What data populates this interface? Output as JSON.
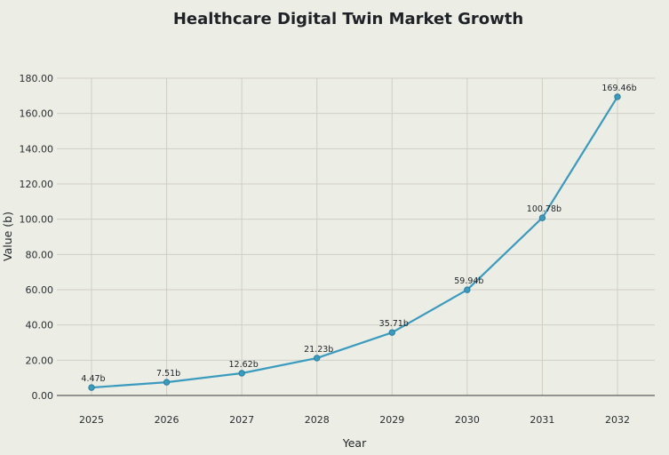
{
  "chart_data": {
    "type": "line",
    "title": "Healthcare Digital Twin Market Growth",
    "xlabel": "Year",
    "ylabel": "Value (b)",
    "categories": [
      "2025",
      "2026",
      "2027",
      "2028",
      "2029",
      "2030",
      "2031",
      "2032"
    ],
    "series": [
      {
        "name": "Value (b)",
        "values": [
          4.47,
          7.51,
          12.62,
          21.23,
          35.71,
          59.94,
          100.78,
          169.46
        ],
        "labels": [
          "4.47b",
          "7.51b",
          "12.62b",
          "21.23b",
          "35.71b",
          "59.94b",
          "100.78b",
          "169.46b"
        ]
      }
    ],
    "yticks": [
      "0.00",
      "20.00",
      "40.00",
      "60.00",
      "80.00",
      "100.00",
      "120.00",
      "140.00",
      "160.00",
      "180.00"
    ],
    "ylim": [
      0,
      180
    ],
    "grid": true,
    "colors": {
      "line": "#3a9bbf",
      "background": "#ecede5"
    }
  }
}
